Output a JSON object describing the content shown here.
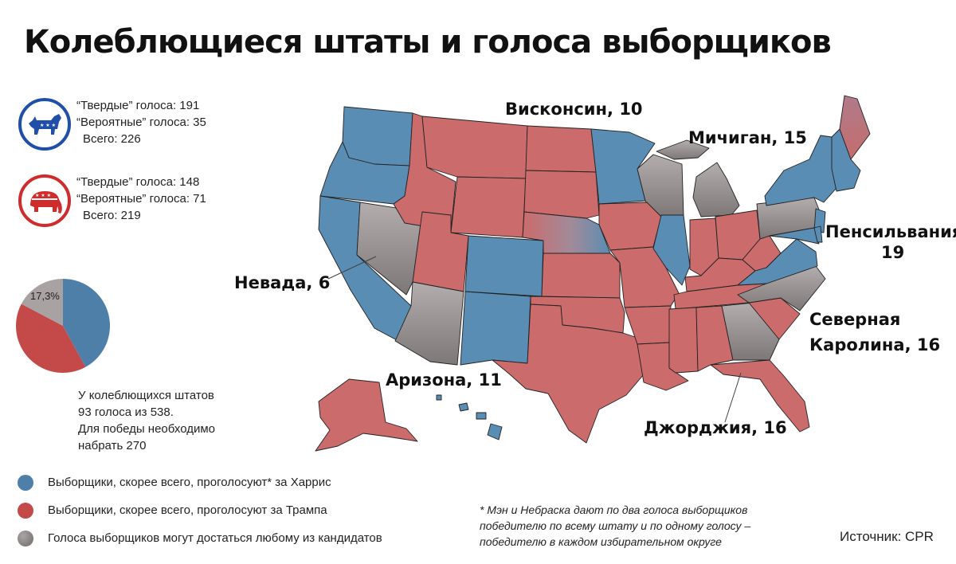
{
  "title": "Колеблющиеся штаты и голоса выборщиков",
  "colors": {
    "harris": "#5a8db3",
    "trump": "#cc6b6b",
    "swing": "#9a9494",
    "dem_emblem": "#1f4fa8",
    "rep_emblem": "#d02c2c"
  },
  "democrats": {
    "icon": "donkey-icon",
    "solid": "“Твердые” голоса: 191",
    "likely": "“Вероятные” голоса: 35",
    "total": "Всего: 226"
  },
  "republicans": {
    "icon": "elephant-icon",
    "solid": "“Твердые” голоса: 148",
    "likely": "“Вероятные” голоса: 71",
    "total": "Всего: 219"
  },
  "pie": {
    "label": "17,3%",
    "slices": [
      {
        "party": "harris",
        "value": 226
      },
      {
        "party": "trump",
        "value": 219
      },
      {
        "party": "swing",
        "value": 93
      }
    ]
  },
  "swing_note": {
    "line1": "У колеблющихся штатов",
    "line2": "93 голоса из 538.",
    "line3": "Для победы необходимо",
    "line4": "набрать 270"
  },
  "legend": [
    {
      "text": "Выборщики, скорее всего, проголосуют* за Харрис",
      "color": "#4e7fa8"
    },
    {
      "text": "Выборщики, скорее всего, проголосуют за Трампа",
      "color": "#c44a4a"
    },
    {
      "text": "Голоса выборщиков могут достаться любому из кандидатов",
      "color": "#8a8484"
    }
  ],
  "footnote": {
    "line1": "* Мэн и Небраска дают по два голоса выборщиков",
    "line2": "победителю по всему штату и по одному голосу –",
    "line3": "победителю в каждом избирательном округе"
  },
  "source": "Источник: CPR",
  "swing_states": {
    "wisconsin": "Висконсин, 10",
    "michigan": "Мичиган, 15",
    "pennsylvania_1": "Пенсильвания,",
    "pennsylvania_2": "19",
    "nevada": "Невада, 6",
    "arizona": "Аризона, 11",
    "north_carolina_1": "Северная",
    "north_carolina_2": "Каролина, 16",
    "georgia": "Джорджия, 16"
  }
}
